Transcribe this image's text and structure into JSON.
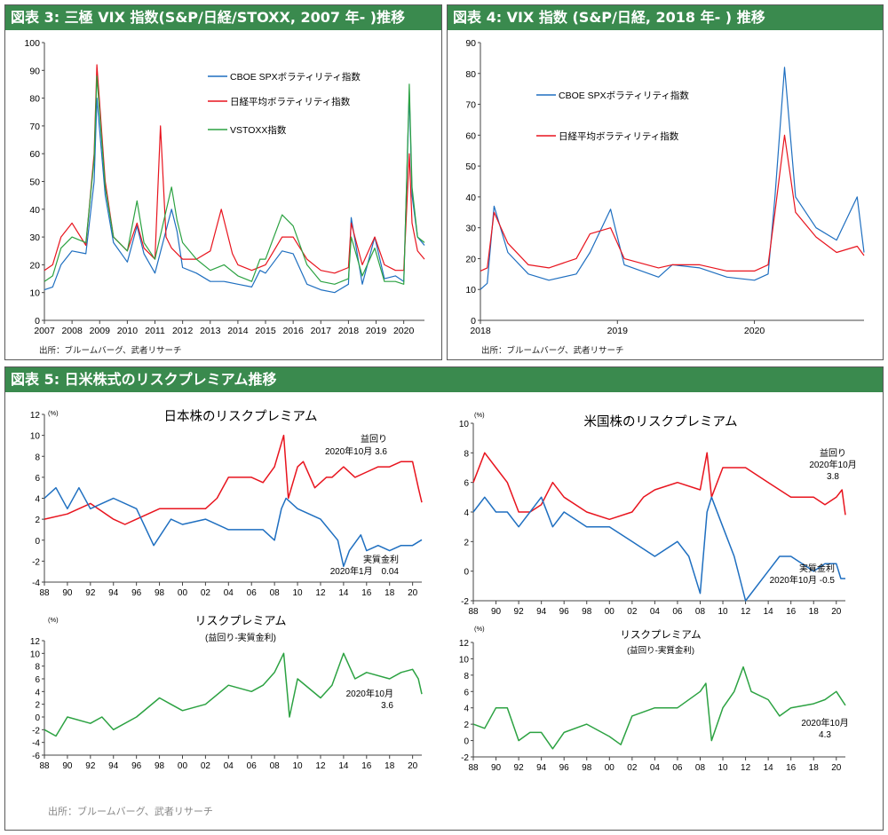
{
  "panels": {
    "fig3": {
      "title": "図表 3: 三極 VIX 指数(S&P/日経/STOXX, 2007 年- )推移",
      "source": "出所：ブルームバーグ、武者リサーチ"
    },
    "fig4": {
      "title": "図表 4: VIX 指数 (S&P/日経, 2018 年- ) 推移",
      "source": "出所：ブルームバーグ、武者リサーチ"
    },
    "fig5": {
      "title": "図表 5: 日米株式のリスクプレミアム推移",
      "source": "出所：ブルームバーグ、武者リサーチ"
    }
  },
  "colors": {
    "blue": "#1f6fc0",
    "red": "#e8141e",
    "green": "#2ca242",
    "header": "#3a8a4e"
  },
  "chart_data": [
    {
      "id": "fig3",
      "type": "line",
      "xlim": [
        2007,
        2020.75
      ],
      "ylim": [
        0,
        100
      ],
      "xticks": [
        "2007",
        "2008",
        "2009",
        "2010",
        "2011",
        "2012",
        "2013",
        "2014",
        "2015",
        "2016",
        "2017",
        "2018",
        "2019",
        "2020"
      ],
      "yticks": [
        "0",
        "10",
        "20",
        "30",
        "40",
        "50",
        "60",
        "70",
        "80",
        "90",
        "100"
      ],
      "legend_position": "top-center",
      "series": [
        {
          "name": "CBOE SPXボラティリティ指数",
          "color": "blue",
          "x": [
            2007,
            2007.3,
            2007.6,
            2008,
            2008.5,
            2008.8,
            2008.9,
            2009.2,
            2009.5,
            2010,
            2010.35,
            2010.6,
            2011,
            2011.6,
            2011.8,
            2012,
            2012.5,
            2013,
            2013.5,
            2014,
            2014.5,
            2014.8,
            2015,
            2015.6,
            2016,
            2016.5,
            2017,
            2017.5,
            2018,
            2018.1,
            2018.5,
            2018.95,
            2019.3,
            2019.7,
            2020,
            2020.2,
            2020.3,
            2020.5,
            2020.75
          ],
          "y": [
            11,
            12,
            20,
            25,
            24,
            50,
            80,
            45,
            28,
            21,
            34,
            24,
            17,
            40,
            32,
            19,
            17,
            14,
            14,
            13,
            12,
            18,
            17,
            25,
            24,
            13,
            11,
            10,
            13,
            37,
            13,
            30,
            15,
            16,
            14,
            82,
            45,
            30,
            27
          ]
        },
        {
          "name": "日経平均ボラティリティ指数",
          "color": "red",
          "x": [
            2007,
            2007.3,
            2007.6,
            2008,
            2008.5,
            2008.8,
            2008.9,
            2009.2,
            2009.5,
            2010,
            2010.35,
            2010.6,
            2011,
            2011.2,
            2011.4,
            2011.6,
            2012,
            2012.5,
            2013,
            2013.4,
            2013.8,
            2014,
            2014.5,
            2015,
            2015.6,
            2016,
            2016.5,
            2017,
            2017.5,
            2018,
            2018.1,
            2018.5,
            2018.95,
            2019.3,
            2019.7,
            2020,
            2020.2,
            2020.3,
            2020.5,
            2020.75
          ],
          "y": [
            18,
            20,
            30,
            35,
            27,
            60,
            92,
            50,
            30,
            25,
            35,
            26,
            22,
            70,
            30,
            26,
            22,
            22,
            25,
            40,
            24,
            20,
            18,
            20,
            30,
            30,
            22,
            18,
            17,
            19,
            35,
            20,
            30,
            20,
            18,
            18,
            60,
            35,
            25,
            22
          ]
        },
        {
          "name": "VSTOXX指数",
          "color": "green",
          "x": [
            2007,
            2007.3,
            2007.6,
            2008,
            2008.5,
            2008.8,
            2008.9,
            2009.2,
            2009.5,
            2010,
            2010.35,
            2010.6,
            2011,
            2011.6,
            2011.8,
            2012,
            2012.5,
            2013,
            2013.5,
            2014,
            2014.5,
            2014.8,
            2015,
            2015.6,
            2016,
            2016.5,
            2017,
            2017.5,
            2018,
            2018.1,
            2018.5,
            2018.95,
            2019.3,
            2019.7,
            2020,
            2020.2,
            2020.3,
            2020.5,
            2020.75
          ],
          "y": [
            14,
            16,
            26,
            30,
            28,
            58,
            88,
            48,
            30,
            25,
            43,
            28,
            22,
            48,
            36,
            28,
            22,
            18,
            20,
            16,
            14,
            22,
            22,
            38,
            34,
            20,
            14,
            13,
            15,
            30,
            16,
            26,
            14,
            14,
            13,
            85,
            48,
            30,
            28
          ]
        }
      ]
    },
    {
      "id": "fig4",
      "type": "line",
      "xlim": [
        2018,
        2020.8
      ],
      "ylim": [
        0,
        90
      ],
      "xticks": [
        "2018",
        "2019",
        "2020"
      ],
      "yticks": [
        "0",
        "10",
        "20",
        "30",
        "40",
        "50",
        "60",
        "70",
        "80",
        "90"
      ],
      "legend_position": "top-left",
      "series": [
        {
          "name": "CBOE SPXボラティリティ指数",
          "color": "blue",
          "x": [
            2018,
            2018.05,
            2018.1,
            2018.2,
            2018.35,
            2018.5,
            2018.7,
            2018.8,
            2018.95,
            2019.05,
            2019.3,
            2019.4,
            2019.6,
            2019.8,
            2020,
            2020.1,
            2020.15,
            2020.22,
            2020.3,
            2020.45,
            2020.6,
            2020.75,
            2020.8
          ],
          "y": [
            10,
            12,
            37,
            22,
            15,
            13,
            15,
            22,
            36,
            18,
            14,
            18,
            17,
            14,
            13,
            15,
            40,
            82,
            40,
            30,
            26,
            40,
            22
          ]
        },
        {
          "name": "日経平均ボラティリティ指数",
          "color": "red",
          "x": [
            2018,
            2018.05,
            2018.1,
            2018.2,
            2018.35,
            2018.5,
            2018.7,
            2018.8,
            2018.95,
            2019.05,
            2019.3,
            2019.4,
            2019.6,
            2019.8,
            2020,
            2020.1,
            2020.15,
            2020.22,
            2020.3,
            2020.45,
            2020.6,
            2020.75,
            2020.8
          ],
          "y": [
            16,
            17,
            35,
            25,
            18,
            17,
            20,
            28,
            30,
            20,
            17,
            18,
            18,
            16,
            16,
            18,
            35,
            60,
            35,
            27,
            22,
            24,
            21
          ]
        }
      ]
    },
    {
      "id": "fig5_jp_top",
      "type": "line",
      "title": "日本株のリスクプレミアム",
      "unit": "(%)",
      "xlim": [
        1988,
        2020.8
      ],
      "ylim": [
        -4,
        12
      ],
      "xticks": [
        "88",
        "90",
        "92",
        "94",
        "96",
        "98",
        "00",
        "02",
        "04",
        "06",
        "08",
        "10",
        "12",
        "14",
        "16",
        "18",
        "20"
      ],
      "yticks": [
        "-4",
        "-2",
        "0",
        "2",
        "4",
        "6",
        "8",
        "10",
        "12"
      ],
      "series": [
        {
          "name": "益回り",
          "color": "red",
          "x": [
            1988,
            1990,
            1992,
            1994,
            1995,
            1996,
            1998,
            2000,
            2002,
            2003,
            2004,
            2006,
            2007,
            2008,
            2008.8,
            2009.2,
            2010,
            2010.5,
            2011.5,
            2012.5,
            2013,
            2014,
            2015,
            2016,
            2017,
            2018,
            2019,
            2020,
            2020.5,
            2020.8
          ],
          "y": [
            2,
            2.5,
            3.5,
            2,
            1.5,
            2,
            3,
            3,
            3,
            4,
            6,
            6,
            5.5,
            7,
            10,
            4,
            7,
            7.5,
            5,
            6,
            6,
            7,
            6,
            6.5,
            7,
            7,
            7.5,
            7.5,
            5,
            3.6
          ]
        },
        {
          "name": "実質金利",
          "color": "blue",
          "x": [
            1988,
            1989,
            1990,
            1991,
            1992,
            1994,
            1996,
            1997.5,
            1999,
            2000,
            2002,
            2004,
            2006,
            2007,
            2008,
            2008.6,
            2009,
            2010,
            2012,
            2013.5,
            2014,
            2014.5,
            2015.5,
            2016,
            2017,
            2018,
            2019,
            2020,
            2020.8
          ],
          "y": [
            4,
            5,
            3,
            5,
            3,
            4,
            3,
            -0.5,
            2,
            1.5,
            2,
            1,
            1,
            1,
            0,
            3,
            4,
            3,
            2,
            0,
            -2.5,
            -1,
            0.5,
            -1,
            -0.5,
            -1,
            -0.5,
            -0.5,
            0.04
          ]
        }
      ],
      "annotations": [
        {
          "name": "earnings-yield-label",
          "lines": [
            "益回り",
            "2020年10月 3.6"
          ]
        },
        {
          "name": "real-rate-label",
          "lines": [
            "実質金利",
            "2020年1月　0.04"
          ]
        }
      ]
    },
    {
      "id": "fig5_jp_bottom",
      "type": "line",
      "title": "リスクプレミアム",
      "subtitle": "(益回り-実質金利)",
      "unit": "(%)",
      "xlim": [
        1988,
        2020.8
      ],
      "ylim": [
        -6,
        12
      ],
      "xticks": [
        "88",
        "90",
        "92",
        "94",
        "96",
        "98",
        "00",
        "02",
        "04",
        "06",
        "08",
        "10",
        "12",
        "14",
        "16",
        "18",
        "20"
      ],
      "yticks": [
        "-6",
        "-4",
        "-2",
        "0",
        "2",
        "4",
        "6",
        "8",
        "10",
        "12"
      ],
      "series": [
        {
          "name": "リスクプレミアム",
          "color": "green",
          "x": [
            1988,
            1989,
            1990,
            1992,
            1993,
            1994,
            1996,
            1998,
            1999,
            2000,
            2002,
            2004,
            2006,
            2007,
            2008,
            2008.8,
            2009.3,
            2010,
            2012,
            2013,
            2014,
            2015,
            2016,
            2018,
            2019,
            2020,
            2020.5,
            2020.8
          ],
          "y": [
            -2,
            -3,
            0,
            -1,
            0,
            -2,
            0,
            3,
            2,
            1,
            2,
            5,
            4,
            5,
            7,
            10,
            0,
            6,
            3,
            5,
            10,
            6,
            7,
            6,
            7,
            7.5,
            6,
            3.6
          ]
        }
      ],
      "annotations": [
        {
          "name": "premium-label",
          "lines": [
            "2020年10月",
            "3.6"
          ]
        }
      ]
    },
    {
      "id": "fig5_us_top",
      "type": "line",
      "title": "米国株のリスクプレミアム",
      "unit": "(%)",
      "xlim": [
        1988,
        2020.8
      ],
      "ylim": [
        -2,
        10
      ],
      "xticks": [
        "88",
        "90",
        "92",
        "94",
        "96",
        "98",
        "00",
        "02",
        "04",
        "06",
        "08",
        "10",
        "12",
        "14",
        "16",
        "18",
        "20"
      ],
      "yticks": [
        "-2",
        "0",
        "2",
        "4",
        "6",
        "8",
        "10"
      ],
      "series": [
        {
          "name": "益回り",
          "color": "red",
          "x": [
            1988,
            1989,
            1990,
            1991,
            1992,
            1993,
            1994,
            1995,
            1996,
            1998,
            2000,
            2002,
            2003,
            2004,
            2006,
            2008,
            2008.6,
            2009,
            2010,
            2012,
            2014,
            2016,
            2018,
            2019,
            2020,
            2020.5,
            2020.8
          ],
          "y": [
            6,
            8,
            7,
            6,
            4,
            4,
            4.5,
            6,
            5,
            4,
            3.5,
            4,
            5,
            5.5,
            6,
            5.5,
            8,
            5,
            7,
            7,
            6,
            5,
            5,
            4.5,
            5,
            5.5,
            3.8
          ]
        },
        {
          "name": "実質金利",
          "color": "blue",
          "x": [
            1988,
            1989,
            1990,
            1991,
            1992,
            1994,
            1995,
            1996,
            1998,
            2000,
            2002,
            2004,
            2006,
            2007,
            2008,
            2008.6,
            2009,
            2010,
            2011,
            2011.5,
            2012,
            2014,
            2015,
            2016,
            2018,
            2019,
            2020,
            2020.4,
            2020.8
          ],
          "y": [
            4,
            5,
            4,
            4,
            3,
            5,
            3,
            4,
            3,
            3,
            2,
            1,
            2,
            1,
            -1.5,
            4,
            5,
            3,
            1,
            -0.5,
            -2,
            0,
            1,
            1,
            0,
            0.5,
            0.5,
            -0.5,
            -0.5
          ]
        }
      ],
      "annotations": [
        {
          "name": "earnings-yield-label",
          "lines": [
            "益回り",
            "2020年10月",
            "3.8"
          ]
        },
        {
          "name": "real-rate-label",
          "lines": [
            "実質金利",
            "2020年10月 -0.5"
          ]
        }
      ]
    },
    {
      "id": "fig5_us_bottom",
      "type": "line",
      "title": "リスクプレミアム",
      "subtitle": "(益回り-実質金利)",
      "unit": "(%)",
      "xlim": [
        1988,
        2020.8
      ],
      "ylim": [
        -2,
        12
      ],
      "xticks": [
        "88",
        "90",
        "92",
        "94",
        "96",
        "98",
        "00",
        "02",
        "04",
        "06",
        "08",
        "10",
        "12",
        "14",
        "16",
        "18",
        "20"
      ],
      "yticks": [
        "-2",
        "0",
        "2",
        "4",
        "6",
        "8",
        "10",
        "12"
      ],
      "series": [
        {
          "name": "リスクプレミアム",
          "color": "green",
          "x": [
            1988,
            1989,
            1990,
            1991,
            1992,
            1993,
            1994,
            1995,
            1996,
            1998,
            2000,
            2001,
            2002,
            2004,
            2006,
            2008,
            2008.5,
            2009,
            2010,
            2011,
            2011.8,
            2012.5,
            2014,
            2015,
            2016,
            2018,
            2019,
            2020,
            2020.8
          ],
          "y": [
            2,
            1.5,
            4,
            4,
            0,
            1,
            1,
            -1,
            1,
            2,
            0.5,
            -0.5,
            3,
            4,
            4,
            6,
            7,
            0,
            4,
            6,
            9,
            6,
            5,
            3,
            4,
            4.5,
            5,
            6,
            4.3
          ]
        }
      ],
      "annotations": [
        {
          "name": "premium-label",
          "lines": [
            "2020年10月",
            "4.3"
          ]
        }
      ]
    }
  ]
}
